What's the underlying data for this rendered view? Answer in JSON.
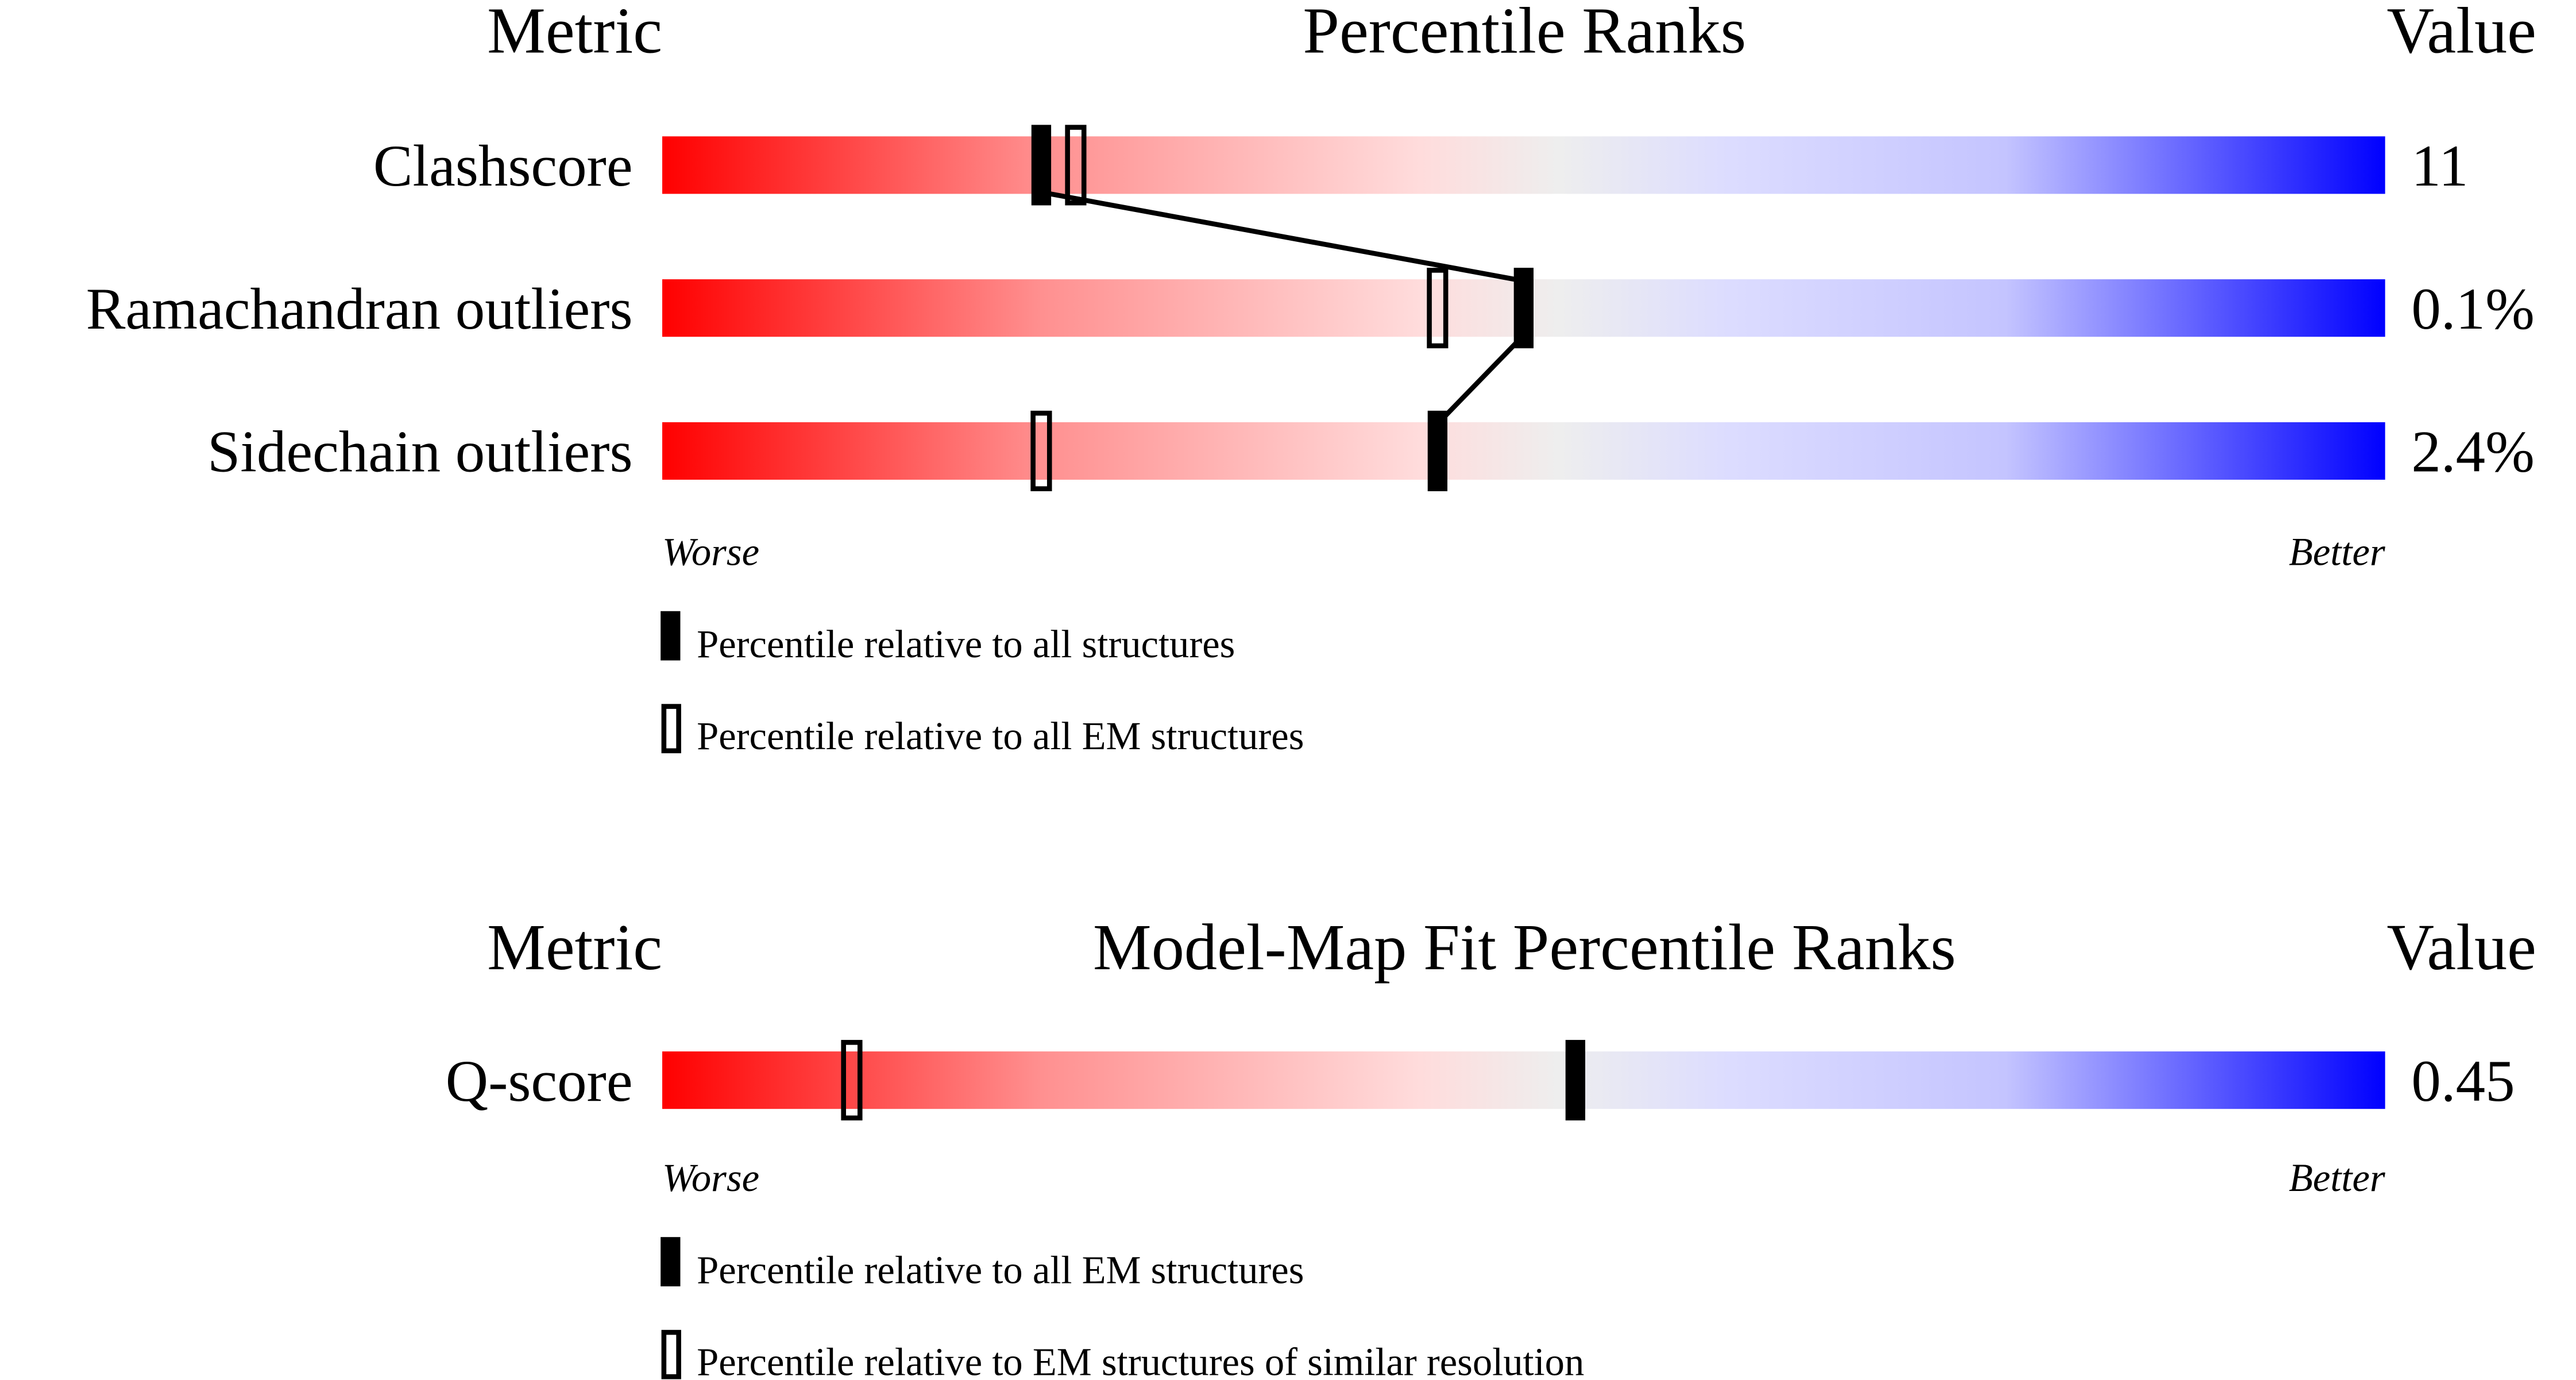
{
  "chart_data": [
    {
      "type": "percentile-bar",
      "headers": {
        "metric": "Metric",
        "title": "Percentile Ranks",
        "value": "Value"
      },
      "xlim": [
        0,
        100
      ],
      "axis_labels": {
        "left": "Worse",
        "right": "Better"
      },
      "rows": [
        {
          "metric": "Clashscore",
          "value": "11",
          "all": 22,
          "em": 24
        },
        {
          "metric": "Ramachandran outliers",
          "value": "0.1%",
          "all": 50,
          "em": 45
        },
        {
          "metric": "Sidechain outliers",
          "value": "2.4%",
          "all": 45,
          "em": 22
        }
      ],
      "legend": [
        {
          "marker": "filled",
          "label": "Percentile relative to all structures"
        },
        {
          "marker": "open",
          "label": "Percentile relative to all EM structures"
        }
      ],
      "connect_filled_markers": true
    },
    {
      "type": "percentile-bar",
      "headers": {
        "metric": "Metric",
        "title": "Model-Map Fit Percentile Ranks",
        "value": "Value"
      },
      "xlim": [
        0,
        100
      ],
      "axis_labels": {
        "left": "Worse",
        "right": "Better"
      },
      "rows": [
        {
          "metric": "Q-score",
          "value": "0.45",
          "all": 53,
          "em": 11
        }
      ],
      "legend": [
        {
          "marker": "filled",
          "label": "Percentile relative to all EM structures"
        },
        {
          "marker": "open",
          "label": "Percentile relative to EM structures of similar resolution"
        }
      ],
      "connect_filled_markers": false
    }
  ],
  "colors": {
    "worse": "#ff0000",
    "middle": "#eeeeee",
    "better": "#0000ff",
    "marker": "#000000"
  }
}
